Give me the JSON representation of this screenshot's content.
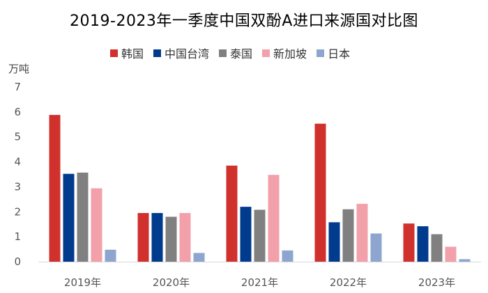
{
  "chart_data": {
    "type": "bar",
    "title": "2019-2023年一季度中国双酚A进口来源国对比图",
    "ylabel": "万吨",
    "xlabel": "",
    "ylim": [
      0,
      7
    ],
    "yticks": [
      0,
      1,
      2,
      3,
      4,
      5,
      6,
      7
    ],
    "grid": false,
    "legend_position": "top",
    "categories": [
      "2019年",
      "2020年",
      "2021年",
      "2022年",
      "2023年"
    ],
    "series": [
      {
        "name": "韩国",
        "color": "#d0312d",
        "values": [
          5.88,
          1.95,
          3.85,
          5.53,
          1.53
        ]
      },
      {
        "name": "中国台湾",
        "color": "#003b8e",
        "values": [
          3.52,
          1.95,
          2.2,
          1.58,
          1.42
        ]
      },
      {
        "name": "泰国",
        "color": "#808080",
        "values": [
          3.57,
          1.8,
          2.08,
          2.1,
          1.1
        ]
      },
      {
        "name": "新加坡",
        "color": "#f2a0aa",
        "values": [
          2.94,
          1.95,
          3.48,
          2.32,
          0.6
        ]
      },
      {
        "name": "日本",
        "color": "#8ea6cf",
        "values": [
          0.48,
          0.35,
          0.45,
          1.13,
          0.1
        ]
      }
    ]
  }
}
